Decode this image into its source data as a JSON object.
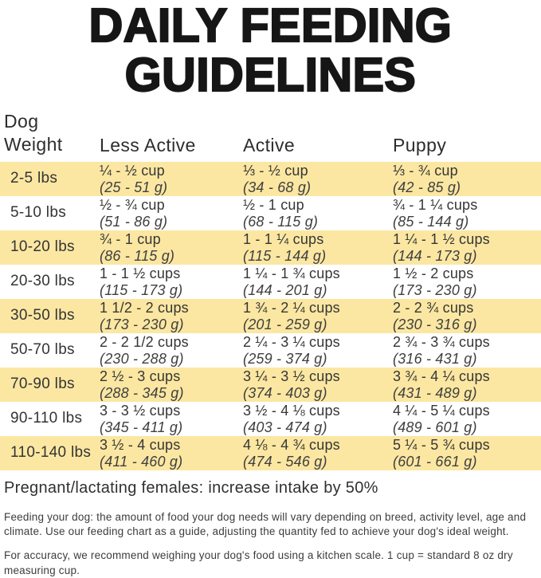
{
  "title": {
    "line1": "DAILY FEEDING",
    "line2": "GUIDELINES"
  },
  "colors": {
    "row_highlight": "#FBE7A2"
  },
  "table": {
    "headers": {
      "weight_line1": "Dog",
      "weight_line2": "Weight",
      "less_active": "Less Active",
      "active": "Active",
      "puppy": "Puppy"
    },
    "rows": [
      {
        "weight": "2-5 lbs",
        "less_active": {
          "amount": "¼ - ½ cup",
          "grams": "(25 - 51 g)"
        },
        "active": {
          "amount": "⅓ - ½ cup",
          "grams": "(34 - 68 g)"
        },
        "puppy": {
          "amount": "⅓ - ¾ cup",
          "grams": "(42 - 85 g)"
        }
      },
      {
        "weight": "5-10 lbs",
        "less_active": {
          "amount": "½ - ¾ cup",
          "grams": "(51 - 86 g)"
        },
        "active": {
          "amount": "½ - 1 cup",
          "grams": "(68 - 115 g)"
        },
        "puppy": {
          "amount": "¾ - 1 ¼ cups",
          "grams": "(85 - 144 g)"
        }
      },
      {
        "weight": "10-20 lbs",
        "less_active": {
          "amount": "¾ - 1 cup",
          "grams": "(86 - 115 g)"
        },
        "active": {
          "amount": "1 - 1 ¼ cups",
          "grams": "(115 - 144 g)"
        },
        "puppy": {
          "amount": "1 ¼ - 1 ½ cups",
          "grams": "(144 - 173 g)"
        }
      },
      {
        "weight": "20-30 lbs",
        "less_active": {
          "amount": "1 - 1 ½ cups",
          "grams": "(115 - 173 g)"
        },
        "active": {
          "amount": "1 ¼ - 1 ¾ cups",
          "grams": "(144 - 201 g)"
        },
        "puppy": {
          "amount": "1 ½ - 2 cups",
          "grams": "(173 - 230 g)"
        }
      },
      {
        "weight": "30-50 lbs",
        "less_active": {
          "amount": "1 1/2 - 2 cups",
          "grams": "(173 - 230 g)"
        },
        "active": {
          "amount": "1 ¾ - 2 ¼ cups",
          "grams": "(201 - 259 g)"
        },
        "puppy": {
          "amount": "2 - 2 ¾ cups",
          "grams": "(230 - 316 g)"
        }
      },
      {
        "weight": "50-70 lbs",
        "less_active": {
          "amount": "2 - 2 1/2 cups",
          "grams": "(230 - 288 g)"
        },
        "active": {
          "amount": "2 ¼ - 3 ¼ cups",
          "grams": "(259 - 374 g)"
        },
        "puppy": {
          "amount": "2 ¾ - 3 ¾ cups",
          "grams": "(316 - 431 g)"
        }
      },
      {
        "weight": "70-90 lbs",
        "less_active": {
          "amount": "2 ½ - 3 cups",
          "grams": "(288 - 345 g)"
        },
        "active": {
          "amount": "3 ¼ - 3 ½ cups",
          "grams": "(374 - 403 g)"
        },
        "puppy": {
          "amount": "3 ¾ - 4 ¼ cups",
          "grams": "(431 - 489 g)"
        }
      },
      {
        "weight": "90-110 lbs",
        "less_active": {
          "amount": "3 - 3 ½ cups",
          "grams": "(345 - 411 g)"
        },
        "active": {
          "amount": "3 ½ - 4 ⅛ cups",
          "grams": "(403 - 474 g)"
        },
        "puppy": {
          "amount": "4 ¼ - 5 ¼ cups",
          "grams": "(489 - 601 g)"
        }
      },
      {
        "weight": "110-140 lbs",
        "less_active": {
          "amount": "3 ½ - 4 cups",
          "grams": "(411 - 460 g)"
        },
        "active": {
          "amount": "4 ⅛ - 4 ¾ cups",
          "grams": "(474 - 546 g)"
        },
        "puppy": {
          "amount": "5 ¼ - 5 ¾ cups",
          "grams": "(601 - 661 g)"
        }
      }
    ]
  },
  "notes": {
    "pregnant": "Pregnant/lactating females: increase intake by 50%",
    "feeding": "Feeding your dog: the amount of food your dog needs will vary depending on breed, activity level, age and climate. Use our feeding chart as a guide, adjusting the quantity fed to achieve your dog's ideal weight.",
    "accuracy": "For accuracy, we recommend weighing your dog's food using a kitchen scale. 1 cup = standard 8 oz dry measuring cup."
  }
}
